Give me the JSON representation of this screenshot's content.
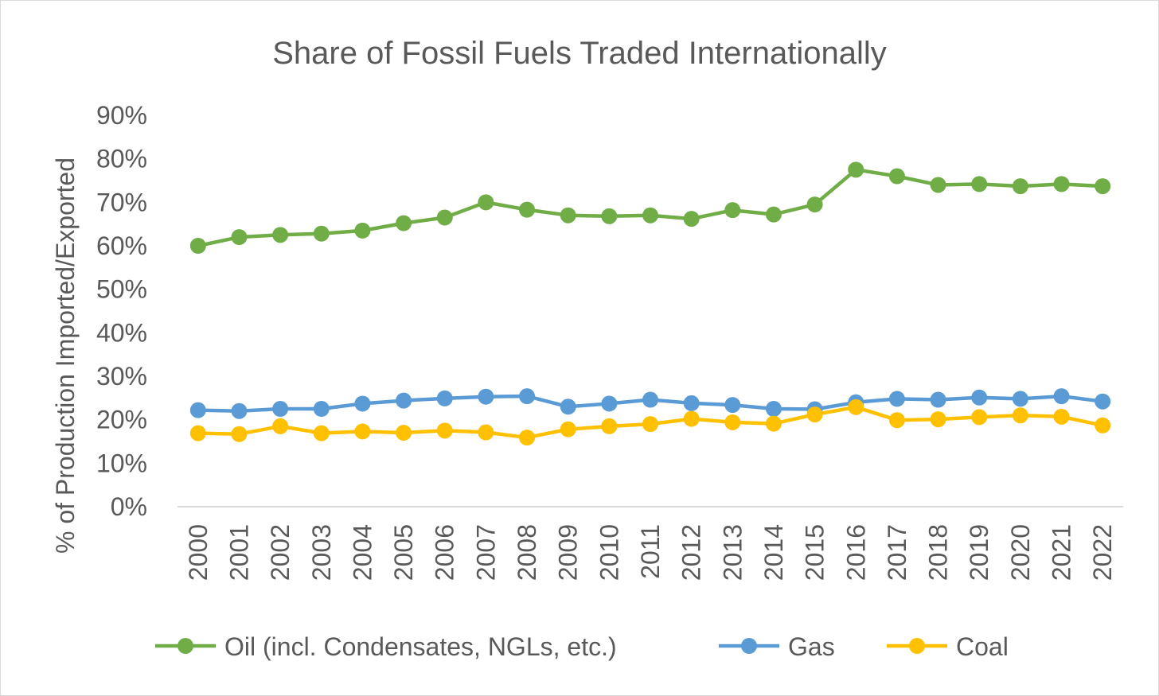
{
  "chart_data": {
    "type": "line",
    "title": "Share of Fossil Fuels Traded Internationally",
    "xlabel": "",
    "ylabel": "% of Production Imported/Exported",
    "ylim": [
      0,
      90
    ],
    "y_ticks": [
      "0%",
      "10%",
      "20%",
      "30%",
      "40%",
      "50%",
      "60%",
      "70%",
      "80%",
      "90%"
    ],
    "categories": [
      "2000",
      "2001",
      "2002",
      "2003",
      "2004",
      "2005",
      "2006",
      "2007",
      "2008",
      "2009",
      "2010",
      "2011",
      "2012",
      "2013",
      "2014",
      "2015",
      "2016",
      "2017",
      "2018",
      "2019",
      "2020",
      "2021",
      "2022"
    ],
    "grid": false,
    "legend_position": "bottom",
    "series": [
      {
        "name": "Oil (incl. Condensates, NGLs, etc.)",
        "color": "#70ad47",
        "values": [
          60.0,
          62.0,
          62.5,
          62.8,
          63.5,
          65.2,
          66.5,
          70.0,
          68.3,
          67.0,
          66.8,
          67.0,
          66.2,
          68.2,
          67.2,
          69.5,
          77.5,
          76.0,
          74.0,
          74.2,
          73.7,
          74.2,
          73.7
        ]
      },
      {
        "name": "Gas",
        "color": "#5b9bd5",
        "values": [
          22.2,
          22.0,
          22.5,
          22.5,
          23.7,
          24.4,
          24.9,
          25.3,
          25.4,
          23.0,
          23.7,
          24.6,
          23.8,
          23.4,
          22.5,
          22.4,
          24.0,
          24.8,
          24.6,
          25.1,
          24.8,
          25.4,
          24.2
        ]
      },
      {
        "name": "Coal",
        "color": "#ffc000",
        "values": [
          16.9,
          16.7,
          18.5,
          16.9,
          17.3,
          17.0,
          17.5,
          17.1,
          15.9,
          17.8,
          18.5,
          19.0,
          20.2,
          19.4,
          19.1,
          21.2,
          22.9,
          19.9,
          20.1,
          20.6,
          21.0,
          20.7,
          18.7
        ]
      }
    ]
  }
}
